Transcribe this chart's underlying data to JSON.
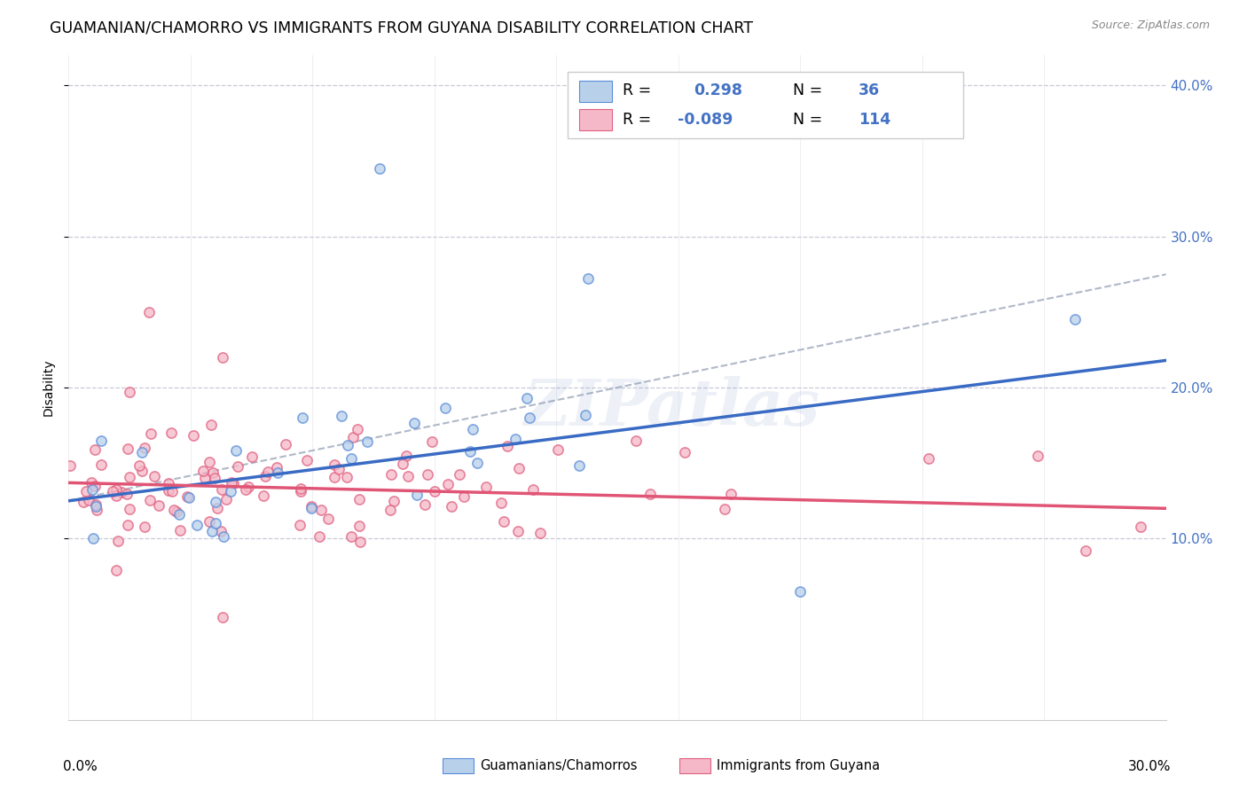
{
  "title": "GUAMANIAN/CHAMORRO VS IMMIGRANTS FROM GUYANA DISABILITY CORRELATION CHART",
  "source": "Source: ZipAtlas.com",
  "ylabel": "Disability",
  "xlim": [
    0.0,
    0.3
  ],
  "ylim": [
    -0.02,
    0.42
  ],
  "yticks": [
    0.1,
    0.2,
    0.3,
    0.4
  ],
  "ytick_labels": [
    "10.0%",
    "20.0%",
    "30.0%",
    "40.0%"
  ],
  "xtick_labels": [
    "0.0%",
    "30.0%"
  ],
  "blue_R": "0.298",
  "blue_N": "36",
  "pink_R": "-0.089",
  "pink_N": "114",
  "blue_fill_color": "#b8d0ea",
  "pink_fill_color": "#f5b8c8",
  "blue_edge_color": "#5b8dd9",
  "pink_edge_color": "#e06080",
  "blue_line_color": "#3a6bc4",
  "pink_line_color": "#e05575",
  "dash_line_color": "#b0b8c8",
  "legend_label_blue": "Guamanians/Chamorros",
  "legend_label_pink": "Immigrants from Guyana",
  "watermark": "ZIPatlas",
  "blue_trend_y_start": 0.125,
  "blue_trend_y_end": 0.218,
  "pink_trend_y_start": 0.137,
  "pink_trend_y_end": 0.12,
  "dash_trend_y_start": 0.125,
  "dash_trend_y_end": 0.275,
  "background_color": "#ffffff",
  "grid_color": "#c8c8d8",
  "title_fontsize": 12.5,
  "axis_label_fontsize": 10,
  "tick_fontsize": 11,
  "watermark_fontsize": 52,
  "watermark_alpha": 0.12,
  "scatter_size": 65,
  "scatter_alpha": 0.75,
  "scatter_linewidth": 1.2
}
